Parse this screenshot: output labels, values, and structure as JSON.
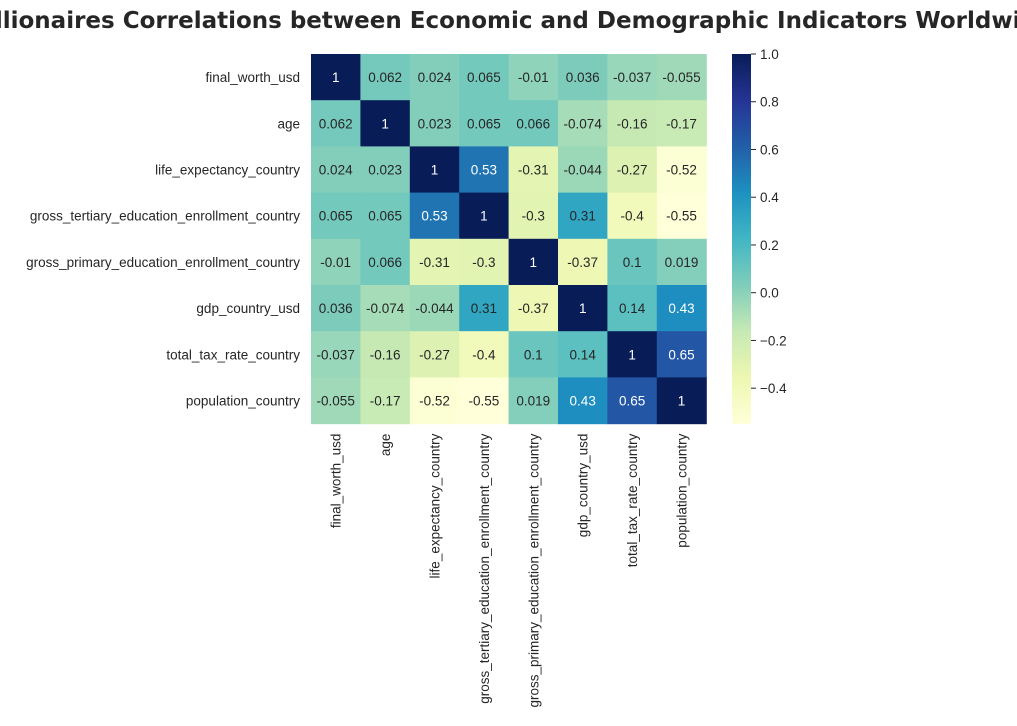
{
  "chart_data": {
    "type": "heatmap",
    "title": "Billionaires Correlations between Economic and Demographic Indicators Worldwide",
    "xlabel": "",
    "ylabel": "",
    "row_labels": [
      "final_worth_usd",
      "age",
      "life_expectancy_country",
      "gross_tertiary_education_enrollment_country",
      "gross_primary_education_enrollment_country",
      "gdp_country_usd",
      "total_tax_rate_country",
      "population_country"
    ],
    "col_labels": [
      "final_worth_usd",
      "age",
      "life_expectancy_country",
      "gross_tertiary_education_enrollment_country",
      "gross_primary_education_enrollment_country",
      "gdp_country_usd",
      "total_tax_rate_country",
      "population_country"
    ],
    "values": [
      [
        1,
        0.062,
        0.024,
        0.065,
        -0.01,
        0.036,
        -0.037,
        -0.055
      ],
      [
        0.062,
        1,
        0.023,
        0.065,
        0.066,
        -0.074,
        -0.16,
        -0.17
      ],
      [
        0.024,
        0.023,
        1,
        0.53,
        -0.31,
        -0.044,
        -0.27,
        -0.52
      ],
      [
        0.065,
        0.065,
        0.53,
        1,
        -0.3,
        0.31,
        -0.4,
        -0.55
      ],
      [
        -0.01,
        0.066,
        -0.31,
        -0.3,
        1,
        -0.37,
        0.1,
        0.019
      ],
      [
        0.036,
        -0.074,
        -0.044,
        0.31,
        -0.37,
        1,
        0.14,
        0.43
      ],
      [
        -0.037,
        -0.16,
        -0.27,
        -0.4,
        0.1,
        0.14,
        1,
        0.65
      ],
      [
        -0.055,
        -0.17,
        -0.52,
        -0.55,
        0.019,
        0.43,
        0.65,
        1
      ]
    ],
    "annotations": [
      [
        "1",
        "0.062",
        "0.024",
        "0.065",
        "-0.01",
        "0.036",
        "-0.037",
        "-0.055"
      ],
      [
        "0.062",
        "1",
        "0.023",
        "0.065",
        "0.066",
        "-0.074",
        "-0.16",
        "-0.17"
      ],
      [
        "0.024",
        "0.023",
        "1",
        "0.53",
        "-0.31",
        "-0.044",
        "-0.27",
        "-0.52"
      ],
      [
        "0.065",
        "0.065",
        "0.53",
        "1",
        "-0.3",
        "0.31",
        "-0.4",
        "-0.55"
      ],
      [
        "-0.01",
        "0.066",
        "-0.31",
        "-0.3",
        "1",
        "-0.37",
        "0.1",
        "0.019"
      ],
      [
        "0.036",
        "-0.074",
        "-0.044",
        "0.31",
        "-0.37",
        "1",
        "0.14",
        "0.43"
      ],
      [
        "-0.037",
        "-0.16",
        "-0.27",
        "-0.4",
        "0.1",
        "0.14",
        "1",
        "0.65"
      ],
      [
        "-0.055",
        "-0.17",
        "-0.52",
        "-0.55",
        "0.019",
        "0.43",
        "0.65",
        "1"
      ]
    ],
    "colormap": "YlGnBu",
    "vmin": -0.55,
    "vmax": 1,
    "colorbar": {
      "ticks": [
        1.0,
        0.8,
        0.6,
        0.4,
        0.2,
        0.0,
        -0.2,
        -0.4
      ],
      "tick_labels": [
        "1.0",
        "0.8",
        "0.6",
        "0.4",
        "0.2",
        "0.0",
        "−0.2",
        "−0.4"
      ]
    },
    "grid": false,
    "legend": "colorbar-right"
  }
}
